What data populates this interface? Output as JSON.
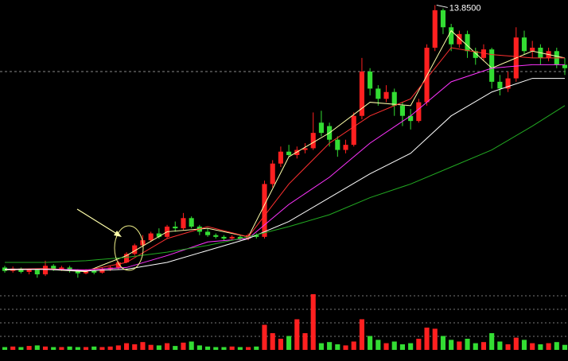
{
  "chart_data": {
    "type": "candlestick",
    "ylim": [
      5.6,
      14.0
    ],
    "up_color": "#ff2020",
    "down_color": "#33dd33",
    "open": [
      6.15,
      6.05,
      6.12,
      6.02,
      6.08,
      5.95,
      6.2,
      6.1,
      6.15,
      6.05,
      5.98,
      6.06,
      6.0,
      6.1,
      6.15,
      6.3,
      6.55,
      6.8,
      6.95,
      7.15,
      7.05,
      7.35,
      7.3,
      7.6,
      7.35,
      7.2,
      7.1,
      7.05,
      7.0,
      7.05,
      7.0,
      7.1,
      7.05,
      8.6,
      9.2,
      9.55,
      9.45,
      9.6,
      9.65,
      10.4,
      10.3,
      9.9,
      9.6,
      9.75,
      10.6,
      11.9,
      11.4,
      11.1,
      11.3,
      10.9,
      10.6,
      10.45,
      11.0,
      12.6,
      13.7,
      13.2,
      12.7,
      13.0,
      12.5,
      12.3,
      12.55,
      11.6,
      11.4,
      11.7,
      12.9,
      12.5,
      12.6,
      12.3,
      12.5,
      12.1
    ],
    "high": [
      6.2,
      6.18,
      6.15,
      6.12,
      6.1,
      6.35,
      6.25,
      6.2,
      6.2,
      6.1,
      6.1,
      6.1,
      6.15,
      6.2,
      6.35,
      6.6,
      6.85,
      7.1,
      7.2,
      7.3,
      7.4,
      7.5,
      7.75,
      7.65,
      7.4,
      7.3,
      7.15,
      7.1,
      7.1,
      7.1,
      7.15,
      7.15,
      8.7,
      9.3,
      9.7,
      9.75,
      9.7,
      9.8,
      10.7,
      10.75,
      10.4,
      10.0,
      9.9,
      10.7,
      12.3,
      12.0,
      11.5,
      11.5,
      11.4,
      11.0,
      10.8,
      11.1,
      12.7,
      13.85,
      13.75,
      13.3,
      13.1,
      13.1,
      12.6,
      12.7,
      12.6,
      11.8,
      11.9,
      13.2,
      13.1,
      12.8,
      12.7,
      12.6,
      12.6,
      12.3
    ],
    "low": [
      6.0,
      6.0,
      5.98,
      5.95,
      5.85,
      5.9,
      6.05,
      6.05,
      6.0,
      5.85,
      5.95,
      5.95,
      5.97,
      6.05,
      6.1,
      6.28,
      6.5,
      6.75,
      6.9,
      7.0,
      7.0,
      7.2,
      7.25,
      7.3,
      7.1,
      7.05,
      7.0,
      6.95,
      6.95,
      6.95,
      6.95,
      7.0,
      7.0,
      8.5,
      9.1,
      9.4,
      9.35,
      9.5,
      9.6,
      10.0,
      9.7,
      9.4,
      9.5,
      9.7,
      10.5,
      11.2,
      10.9,
      11.0,
      10.6,
      10.3,
      10.2,
      10.4,
      10.9,
      12.5,
      13.0,
      12.5,
      12.6,
      12.3,
      12.1,
      12.2,
      11.4,
      11.2,
      11.3,
      11.6,
      12.4,
      12.3,
      12.1,
      12.2,
      12.0,
      11.8
    ],
    "close": [
      6.05,
      6.12,
      6.02,
      6.08,
      5.95,
      6.2,
      6.1,
      6.15,
      6.05,
      5.98,
      6.06,
      6.0,
      6.1,
      6.15,
      6.3,
      6.55,
      6.8,
      6.95,
      7.15,
      7.05,
      7.35,
      7.3,
      7.6,
      7.35,
      7.2,
      7.1,
      7.05,
      7.0,
      7.05,
      7.0,
      7.1,
      7.05,
      8.6,
      9.2,
      9.55,
      9.45,
      9.6,
      9.65,
      10.1,
      10.1,
      9.9,
      9.6,
      9.75,
      10.6,
      11.9,
      11.4,
      11.1,
      11.3,
      10.9,
      10.6,
      10.45,
      11.0,
      12.6,
      13.7,
      13.2,
      12.7,
      13.0,
      12.5,
      12.3,
      12.55,
      11.6,
      11.4,
      11.7,
      12.9,
      12.5,
      12.6,
      12.3,
      12.5,
      12.1,
      12.0
    ],
    "moving_averages": [
      {
        "color": "#ffffaa",
        "x": [
          0,
          5,
          10,
          15,
          20,
          25,
          30,
          35,
          40,
          45,
          50,
          55,
          60,
          65,
          69
        ],
        "values": [
          6.08,
          6.1,
          6.03,
          6.5,
          7.2,
          7.3,
          7.05,
          9.4,
          10.1,
          11.0,
          10.9,
          13.1,
          12.0,
          12.5,
          12.3
        ]
      },
      {
        "color": "#ff3030",
        "x": [
          0,
          5,
          10,
          15,
          20,
          25,
          30,
          35,
          40,
          45,
          50,
          55,
          60,
          65,
          69
        ],
        "values": [
          6.1,
          6.12,
          6.06,
          6.3,
          7.0,
          7.35,
          7.05,
          8.6,
          9.8,
          10.6,
          11.1,
          12.6,
          12.4,
          12.3,
          12.3
        ]
      },
      {
        "color": "#ff33ff",
        "x": [
          0,
          5,
          10,
          15,
          20,
          25,
          30,
          35,
          40,
          45,
          50,
          55,
          60,
          65,
          69
        ],
        "values": [
          6.1,
          6.1,
          6.08,
          6.15,
          6.5,
          6.9,
          7.0,
          8.0,
          8.8,
          9.8,
          10.6,
          11.6,
          12.0,
          12.1,
          12.1
        ]
      },
      {
        "color": "#ffffff",
        "x": [
          0,
          5,
          10,
          15,
          20,
          25,
          30,
          35,
          40,
          45,
          50,
          55,
          60,
          65,
          69
        ],
        "values": [
          6.1,
          6.1,
          6.05,
          6.1,
          6.3,
          6.65,
          7.0,
          7.5,
          8.2,
          8.9,
          9.5,
          10.6,
          11.3,
          11.7,
          11.7
        ]
      },
      {
        "color": "#22aa22",
        "x": [
          0,
          5,
          10,
          15,
          20,
          25,
          30,
          35,
          40,
          45,
          50,
          55,
          60,
          65,
          69
        ],
        "values": [
          6.3,
          6.3,
          6.35,
          6.45,
          6.6,
          6.8,
          7.05,
          7.35,
          7.7,
          8.2,
          8.6,
          9.1,
          9.6,
          10.3,
          10.9
        ]
      }
    ],
    "reference_line": 11.9,
    "max_label": {
      "value": 13.85,
      "index": 53,
      "label": "13.8500"
    },
    "volume": {
      "ylim": [
        0,
        100
      ],
      "values": [
        5,
        6,
        5,
        7,
        8,
        6,
        5,
        5,
        6,
        5,
        5,
        6,
        5,
        6,
        8,
        12,
        10,
        14,
        9,
        8,
        12,
        7,
        13,
        15,
        8,
        6,
        5,
        5,
        6,
        5,
        5,
        6,
        45,
        30,
        20,
        25,
        55,
        30,
        100,
        12,
        14,
        10,
        8,
        15,
        55,
        25,
        18,
        12,
        15,
        10,
        12,
        20,
        40,
        38,
        25,
        18,
        15,
        20,
        12,
        14,
        30,
        15,
        10,
        22,
        18,
        12,
        10,
        12,
        14,
        9
      ]
    }
  }
}
